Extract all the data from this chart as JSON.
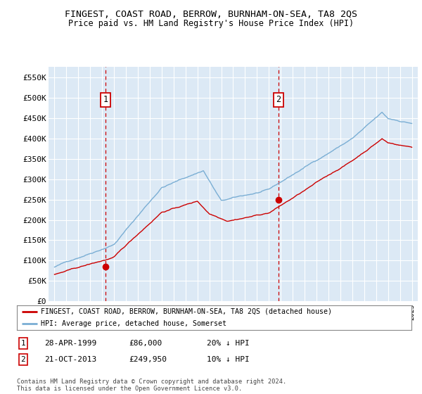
{
  "title": "FINGEST, COAST ROAD, BERROW, BURNHAM-ON-SEA, TA8 2QS",
  "subtitle": "Price paid vs. HM Land Registry's House Price Index (HPI)",
  "background_color": "#dce9f5",
  "ylim": [
    0,
    575000
  ],
  "yticks": [
    0,
    50000,
    100000,
    150000,
    200000,
    250000,
    300000,
    350000,
    400000,
    450000,
    500000,
    550000
  ],
  "ytick_labels": [
    "£0",
    "£50K",
    "£100K",
    "£150K",
    "£200K",
    "£250K",
    "£300K",
    "£350K",
    "£400K",
    "£450K",
    "£500K",
    "£550K"
  ],
  "purchase1_year": 1999.3,
  "purchase1_price": 86000,
  "purchase1_label": "1",
  "purchase1_date": "28-APR-1999",
  "purchase1_amount": "£86,000",
  "purchase1_hpi": "20% ↓ HPI",
  "purchase2_year": 2013.8,
  "purchase2_price": 249950,
  "purchase2_label": "2",
  "purchase2_date": "21-OCT-2013",
  "purchase2_amount": "£249,950",
  "purchase2_hpi": "10% ↓ HPI",
  "legend_line1": "FINGEST, COAST ROAD, BERROW, BURNHAM-ON-SEA, TA8 2QS (detached house)",
  "legend_line2": "HPI: Average price, detached house, Somerset",
  "footer": "Contains HM Land Registry data © Crown copyright and database right 2024.\nThis data is licensed under the Open Government Licence v3.0.",
  "line_red_color": "#cc0000",
  "line_blue_color": "#7aaed4",
  "marker_box_color": "#cc0000"
}
